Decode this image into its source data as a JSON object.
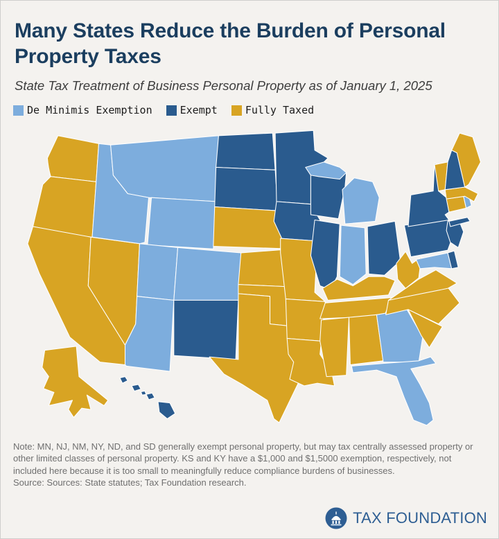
{
  "header": {
    "title": "Many States Reduce the Burden of Personal Property Taxes",
    "subtitle": "State Tax Treatment of Business Personal Property as of January 1, 2025"
  },
  "legend": {
    "items": [
      {
        "key": "de_minimis",
        "label": "De Minimis Exemption",
        "color": "#7DADDD"
      },
      {
        "key": "exempt",
        "label": "Exempt",
        "color": "#2A5B8E"
      },
      {
        "key": "fully_taxed",
        "label": "Fully Taxed",
        "color": "#D8A423"
      }
    ]
  },
  "map": {
    "stroke": "#FFFFFF",
    "states": [
      {
        "id": "WA",
        "name": "Washington",
        "category": "fully_taxed"
      },
      {
        "id": "OR",
        "name": "Oregon",
        "category": "fully_taxed"
      },
      {
        "id": "CA",
        "name": "California",
        "category": "fully_taxed"
      },
      {
        "id": "NV",
        "name": "Nevada",
        "category": "fully_taxed"
      },
      {
        "id": "ID",
        "name": "Idaho",
        "category": "de_minimis"
      },
      {
        "id": "MT",
        "name": "Montana",
        "category": "de_minimis"
      },
      {
        "id": "WY",
        "name": "Wyoming",
        "category": "de_minimis"
      },
      {
        "id": "UT",
        "name": "Utah",
        "category": "de_minimis"
      },
      {
        "id": "CO",
        "name": "Colorado",
        "category": "de_minimis"
      },
      {
        "id": "AZ",
        "name": "Arizona",
        "category": "de_minimis"
      },
      {
        "id": "NM",
        "name": "New Mexico",
        "category": "exempt"
      },
      {
        "id": "ND",
        "name": "North Dakota",
        "category": "exempt"
      },
      {
        "id": "SD",
        "name": "South Dakota",
        "category": "exempt"
      },
      {
        "id": "NE",
        "name": "Nebraska",
        "category": "fully_taxed"
      },
      {
        "id": "KS",
        "name": "Kansas",
        "category": "fully_taxed"
      },
      {
        "id": "OK",
        "name": "Oklahoma",
        "category": "fully_taxed"
      },
      {
        "id": "TX",
        "name": "Texas",
        "category": "fully_taxed"
      },
      {
        "id": "MN",
        "name": "Minnesota",
        "category": "exempt"
      },
      {
        "id": "IA",
        "name": "Iowa",
        "category": "exempt"
      },
      {
        "id": "MO",
        "name": "Missouri",
        "category": "fully_taxed"
      },
      {
        "id": "AR",
        "name": "Arkansas",
        "category": "fully_taxed"
      },
      {
        "id": "LA",
        "name": "Louisiana",
        "category": "fully_taxed"
      },
      {
        "id": "WI",
        "name": "Wisconsin",
        "category": "exempt"
      },
      {
        "id": "IL",
        "name": "Illinois",
        "category": "exempt"
      },
      {
        "id": "MI",
        "name": "Michigan",
        "category": "de_minimis"
      },
      {
        "id": "IN",
        "name": "Indiana",
        "category": "de_minimis"
      },
      {
        "id": "OH",
        "name": "Ohio",
        "category": "exempt"
      },
      {
        "id": "KY",
        "name": "Kentucky",
        "category": "fully_taxed"
      },
      {
        "id": "TN",
        "name": "Tennessee",
        "category": "fully_taxed"
      },
      {
        "id": "MS",
        "name": "Mississippi",
        "category": "fully_taxed"
      },
      {
        "id": "AL",
        "name": "Alabama",
        "category": "fully_taxed"
      },
      {
        "id": "GA",
        "name": "Georgia",
        "category": "de_minimis"
      },
      {
        "id": "FL",
        "name": "Florida",
        "category": "de_minimis"
      },
      {
        "id": "SC",
        "name": "South Carolina",
        "category": "fully_taxed"
      },
      {
        "id": "NC",
        "name": "North Carolina",
        "category": "fully_taxed"
      },
      {
        "id": "VA",
        "name": "Virginia",
        "category": "fully_taxed"
      },
      {
        "id": "WV",
        "name": "West Virginia",
        "category": "fully_taxed"
      },
      {
        "id": "MD",
        "name": "Maryland",
        "category": "de_minimis"
      },
      {
        "id": "DE",
        "name": "Delaware",
        "category": "exempt"
      },
      {
        "id": "PA",
        "name": "Pennsylvania",
        "category": "exempt"
      },
      {
        "id": "NJ",
        "name": "New Jersey",
        "category": "exempt"
      },
      {
        "id": "NY",
        "name": "New York",
        "category": "exempt"
      },
      {
        "id": "CT",
        "name": "Connecticut",
        "category": "fully_taxed"
      },
      {
        "id": "RI",
        "name": "Rhode Island",
        "category": "de_minimis"
      },
      {
        "id": "MA",
        "name": "Massachusetts",
        "category": "fully_taxed"
      },
      {
        "id": "VT",
        "name": "Vermont",
        "category": "fully_taxed"
      },
      {
        "id": "NH",
        "name": "New Hampshire",
        "category": "exempt"
      },
      {
        "id": "ME",
        "name": "Maine",
        "category": "fully_taxed"
      },
      {
        "id": "AK",
        "name": "Alaska",
        "category": "fully_taxed"
      },
      {
        "id": "HI",
        "name": "Hawaii",
        "category": "exempt"
      }
    ]
  },
  "chart_data": {
    "type": "heatmap",
    "title": "Many States Reduce the Burden of Personal Property Taxes",
    "subtitle": "State Tax Treatment of Business Personal Property as of January 1, 2025",
    "legend_entries": [
      "De Minimis Exemption",
      "Exempt",
      "Fully Taxed"
    ],
    "de_minimis_states": [
      "ID",
      "MT",
      "WY",
      "UT",
      "CO",
      "AZ",
      "MI",
      "IN",
      "GA",
      "FL",
      "MD",
      "RI"
    ],
    "exempt_states": [
      "ND",
      "SD",
      "MN",
      "IA",
      "WI",
      "IL",
      "OH",
      "PA",
      "NY",
      "NJ",
      "DE",
      "NH",
      "NM",
      "HI"
    ],
    "fully_taxed_states": [
      "WA",
      "OR",
      "CA",
      "NV",
      "AK",
      "NE",
      "KS",
      "OK",
      "TX",
      "MO",
      "AR",
      "LA",
      "MS",
      "AL",
      "TN",
      "KY",
      "WV",
      "VA",
      "NC",
      "SC",
      "ME",
      "VT",
      "MA",
      "CT"
    ]
  },
  "notes": {
    "note": "Note: MN, NJ, NM, NY, ND, and SD generally exempt personal property, but may tax centrally assessed property or other limited classes of personal property. KS and KY have a $1,000 and $1,5000 exemption, respectively, not included here because it is too small to meaningfully reduce compliance burdens of businesses.",
    "source": "Source: Sources: State statutes; Tax Foundation research."
  },
  "branding": {
    "logo_text": "TAX FOUNDATION",
    "logo_color": "#2E5E93"
  }
}
